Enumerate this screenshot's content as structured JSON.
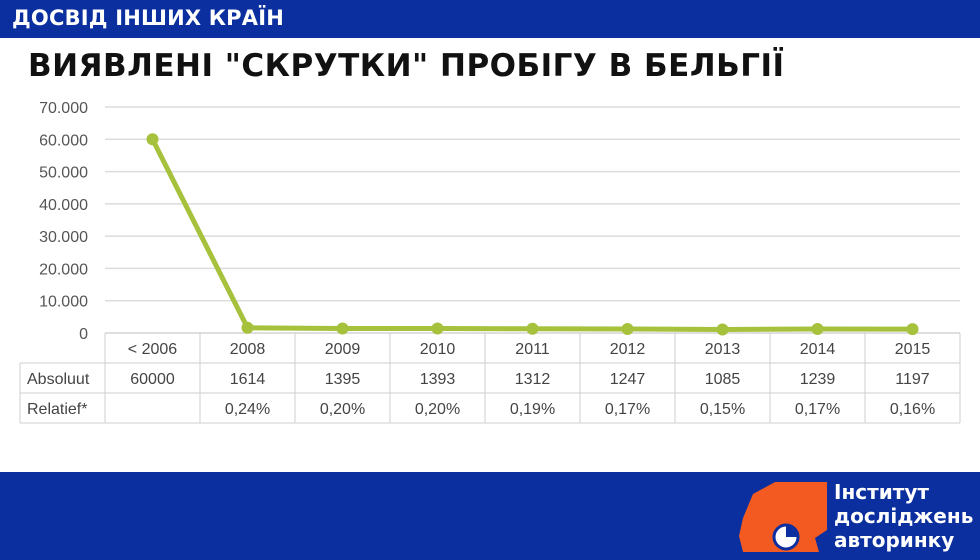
{
  "header": {
    "section_label": "ДОСВІД ІНШИХ КРАЇН"
  },
  "slide": {
    "title": "ВИЯВЛЕНІ \"СКРУТКИ\" ПРОБІГУ В БЕЛЬГІЇ"
  },
  "chart_data": {
    "type": "line",
    "categories": [
      "< 2006",
      "2008",
      "2009",
      "2010",
      "2011",
      "2012",
      "2013",
      "2014",
      "2015"
    ],
    "series": [
      {
        "values": [
          60000,
          1614,
          1395,
          1393,
          1312,
          1247,
          1085,
          1239,
          1197
        ]
      }
    ],
    "ylim": [
      0,
      70000
    ],
    "yticks": [
      0,
      10000,
      20000,
      30000,
      40000,
      50000,
      60000,
      70000
    ],
    "ytick_labels": [
      "0",
      "10.000",
      "20.000",
      "30.000",
      "40.000",
      "50.000",
      "60.000",
      "70.000"
    ],
    "grid": true,
    "line_color": "#a6c13c",
    "table": {
      "rows": [
        {
          "label": "Absoluut",
          "cells": [
            "60000",
            "1614",
            "1395",
            "1393",
            "1312",
            "1247",
            "1085",
            "1239",
            "1197"
          ]
        },
        {
          "label": "Relatief*",
          "cells": [
            "",
            "0,24%",
            "0,20%",
            "0,20%",
            "0,19%",
            "0,17%",
            "0,15%",
            "0,17%",
            "0,16%"
          ]
        }
      ]
    }
  },
  "logo": {
    "lines": [
      "Інститут",
      "досліджень",
      "авторинку"
    ],
    "text_color": "#ffffff",
    "shape_color": "#f25a22"
  }
}
